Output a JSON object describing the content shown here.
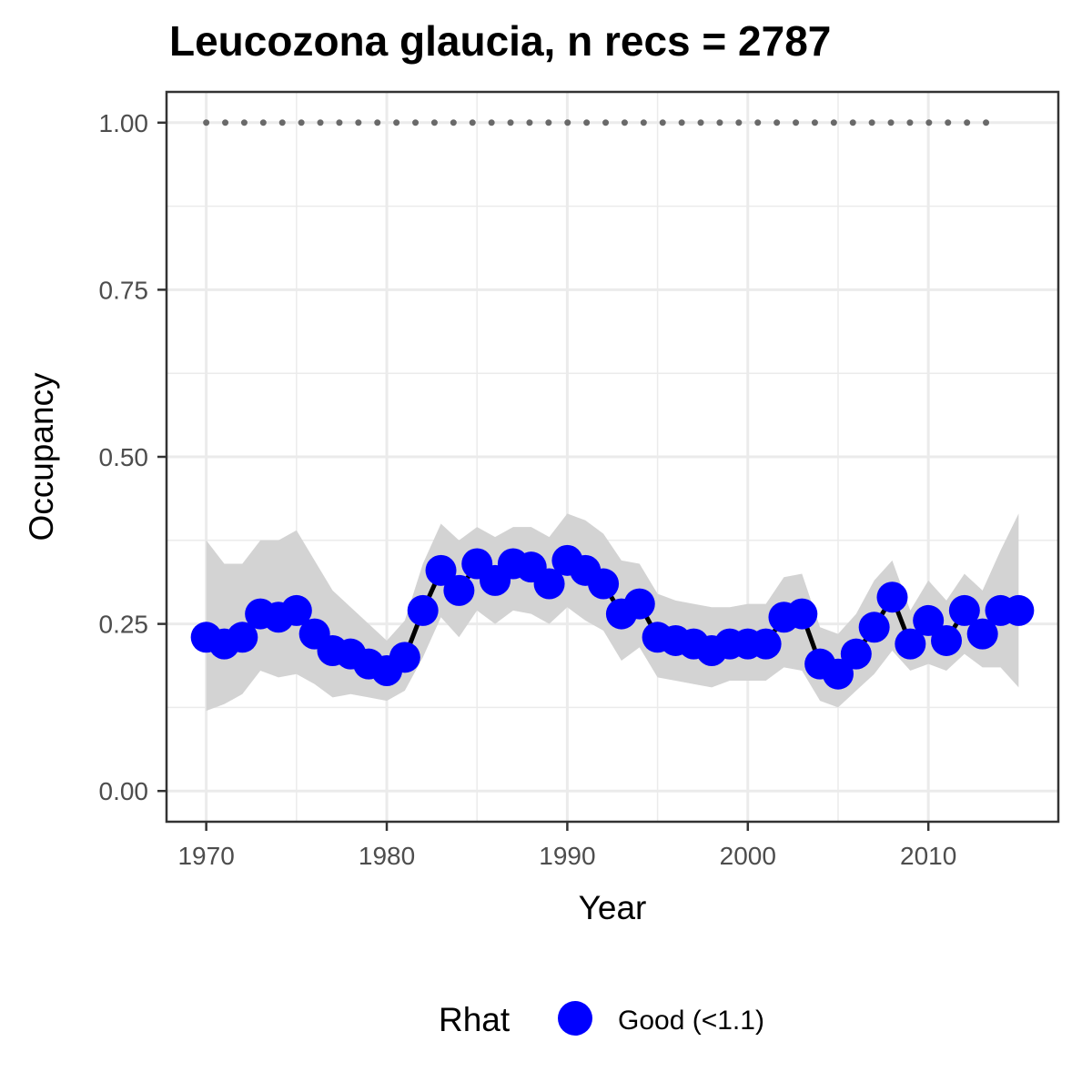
{
  "chart_data": {
    "type": "line",
    "title": "Leucozona glaucia, n recs = 2787",
    "xlabel": "Year",
    "ylabel": "Occupancy",
    "xlim": [
      1967.8,
      2017.2
    ],
    "ylim": [
      -0.046,
      1.046
    ],
    "x_ticks": [
      1970,
      1980,
      1990,
      2000,
      2010
    ],
    "x_tick_labels": [
      "1970",
      "1980",
      "1990",
      "2000",
      "2010"
    ],
    "y_ticks": [
      0,
      0.25,
      0.5,
      0.75,
      1.0
    ],
    "y_tick_labels": [
      "0.00",
      "0.25",
      "0.50",
      "0.75",
      "1.00"
    ],
    "grid": true,
    "series": [
      {
        "name": "Good (<1.1)",
        "x": [
          1970,
          1971,
          1972,
          1973,
          1974,
          1975,
          1976,
          1977,
          1978,
          1979,
          1980,
          1981,
          1982,
          1983,
          1984,
          1985,
          1986,
          1987,
          1988,
          1989,
          1990,
          1991,
          1992,
          1993,
          1994,
          1995,
          1996,
          1997,
          1998,
          1999,
          2000,
          2001,
          2002,
          2003,
          2004,
          2005,
          2006,
          2007,
          2008,
          2009,
          2010,
          2011,
          2012,
          2013,
          2014,
          2015
        ],
        "y": [
          0.23,
          0.22,
          0.23,
          0.265,
          0.26,
          0.27,
          0.235,
          0.21,
          0.205,
          0.19,
          0.18,
          0.2,
          0.27,
          0.33,
          0.3,
          0.34,
          0.315,
          0.34,
          0.335,
          0.31,
          0.345,
          0.33,
          0.31,
          0.265,
          0.28,
          0.23,
          0.225,
          0.22,
          0.21,
          0.22,
          0.22,
          0.22,
          0.26,
          0.265,
          0.19,
          0.175,
          0.205,
          0.245,
          0.29,
          0.22,
          0.255,
          0.225,
          0.27,
          0.235,
          0.27,
          0.27
        ],
        "lower": [
          0.12,
          0.13,
          0.145,
          0.18,
          0.17,
          0.175,
          0.16,
          0.14,
          0.145,
          0.14,
          0.135,
          0.15,
          0.2,
          0.26,
          0.23,
          0.27,
          0.25,
          0.27,
          0.265,
          0.25,
          0.275,
          0.255,
          0.24,
          0.195,
          0.215,
          0.17,
          0.165,
          0.16,
          0.155,
          0.165,
          0.165,
          0.165,
          0.185,
          0.18,
          0.135,
          0.125,
          0.15,
          0.175,
          0.21,
          0.18,
          0.19,
          0.18,
          0.205,
          0.185,
          0.185,
          0.155
        ],
        "upper": [
          0.375,
          0.34,
          0.34,
          0.375,
          0.375,
          0.39,
          0.345,
          0.3,
          0.275,
          0.25,
          0.225,
          0.255,
          0.34,
          0.4,
          0.375,
          0.395,
          0.38,
          0.395,
          0.395,
          0.38,
          0.415,
          0.405,
          0.385,
          0.345,
          0.34,
          0.295,
          0.285,
          0.28,
          0.275,
          0.275,
          0.28,
          0.28,
          0.32,
          0.325,
          0.245,
          0.235,
          0.265,
          0.315,
          0.345,
          0.27,
          0.315,
          0.285,
          0.325,
          0.3,
          0.36,
          0.415
        ]
      }
    ],
    "reference_line": {
      "y": 1.0,
      "x_start": 1970,
      "x_end": 2014,
      "style": "dotted"
    },
    "legend": {
      "title": "Rhat",
      "label": "Good (<1.1)",
      "position": "bottom"
    },
    "colors": {
      "points": "#0000ff",
      "line": "#000000",
      "ribbon": "#d3d3d3",
      "reference": "#696969",
      "grid": "#ebebeb",
      "border": "#333333"
    }
  }
}
